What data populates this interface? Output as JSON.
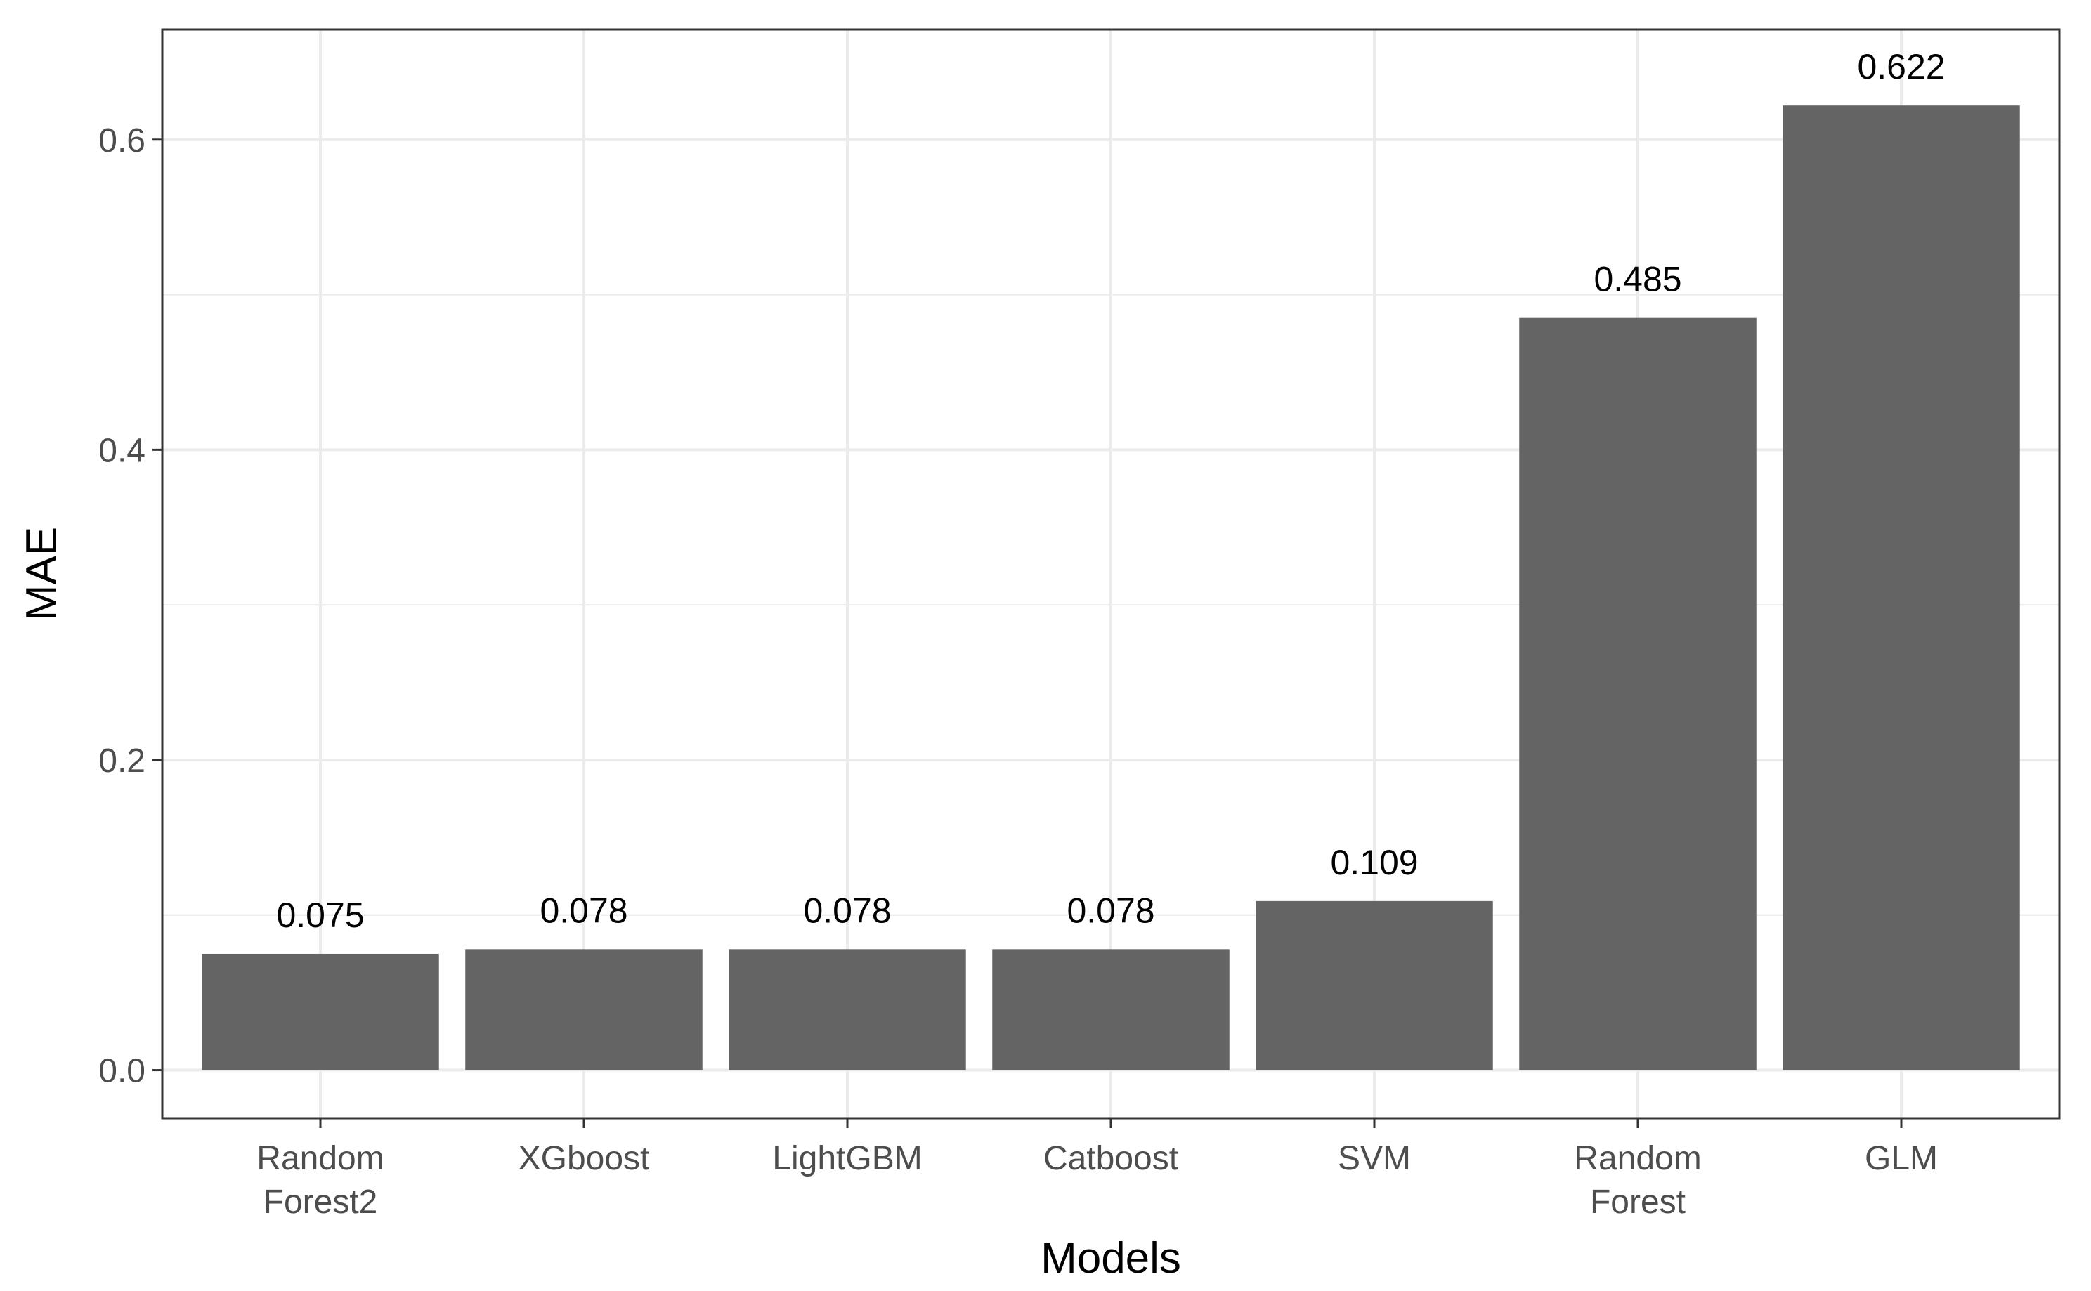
{
  "chart_data": {
    "type": "bar",
    "title": "",
    "xlabel": "Models",
    "ylabel": "MAE",
    "categories": [
      [
        "Random",
        "Forest2"
      ],
      [
        "XGboost"
      ],
      [
        "LightGBM"
      ],
      [
        "Catboost"
      ],
      [
        "SVM"
      ],
      [
        "Random",
        "Forest"
      ],
      [
        "GLM"
      ]
    ],
    "values": [
      0.075,
      0.078,
      0.078,
      0.078,
      0.109,
      0.485,
      0.622
    ],
    "data_labels": [
      "0.075",
      "0.078",
      "0.078",
      "0.078",
      "0.109",
      "0.485",
      "0.622"
    ],
    "ylim": [
      -0.031,
      0.671
    ],
    "y_ticks": [
      0.0,
      0.2,
      0.4,
      0.6
    ],
    "y_tick_labels": [
      "0.0",
      "0.2",
      "0.4",
      "0.6"
    ],
    "grid": true,
    "colors": {
      "bar": "#646464",
      "grid": "#ebebeb",
      "panel_border": "#333333",
      "axis_text": "#4d4d4d",
      "title_text": "#000000"
    }
  }
}
